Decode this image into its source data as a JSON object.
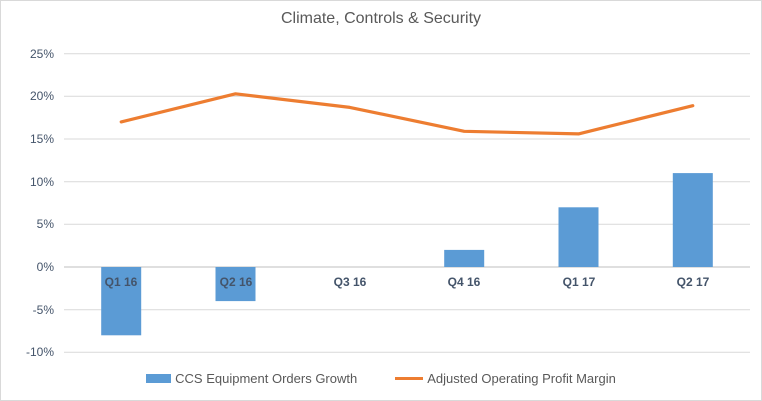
{
  "chart_data": {
    "type": "combo",
    "title": "Climate, Controls & Security",
    "categories": [
      "Q1 16",
      "Q2 16",
      "Q3 16",
      "Q4 16",
      "Q1 17",
      "Q2 17"
    ],
    "series": [
      {
        "name": "CCS Equipment Orders Growth",
        "type": "bar",
        "color": "#5B9BD5",
        "values": [
          -8,
          -4,
          0,
          2,
          7,
          11
        ]
      },
      {
        "name": "Adjusted Operating Profit Margin",
        "type": "line",
        "color": "#ED7D31",
        "values": [
          17.0,
          20.3,
          18.7,
          15.9,
          15.6,
          18.9
        ]
      }
    ],
    "y_axis": {
      "min": -10,
      "max": 25,
      "step": 5,
      "tick_labels": [
        "25%",
        "20%",
        "15%",
        "10%",
        "5%",
        "0%",
        "-5%",
        "-10%"
      ],
      "unit": "%"
    },
    "x_axis": {
      "label": ""
    },
    "grid": true,
    "legend_position": "bottom"
  },
  "colors": {
    "background": "#FFFFFF",
    "border": "#D9D9D9",
    "gridline": "#D9D9D9",
    "zero_axis": "#BFBFBF",
    "axis_text": "#44546A",
    "title_text": "#595959",
    "legend_text": "#595959"
  }
}
